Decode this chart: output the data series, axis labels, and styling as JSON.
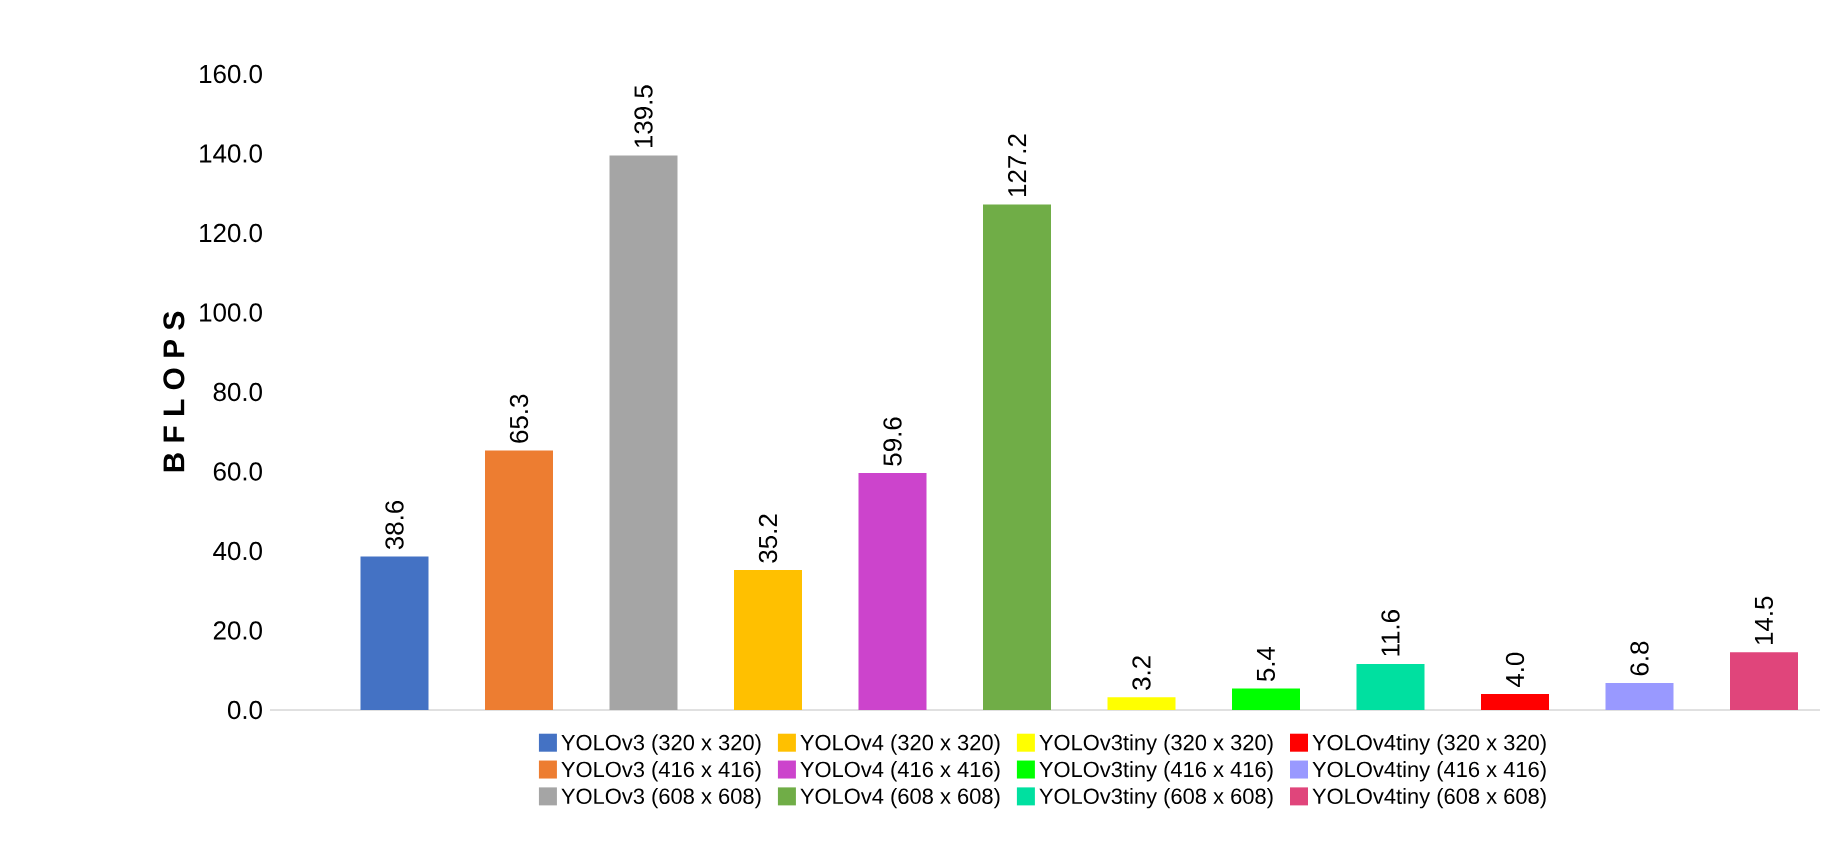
{
  "chart_data": {
    "type": "bar",
    "ylabel": "B F L O P S",
    "categories": [
      null,
      null,
      null,
      null,
      null,
      null,
      null,
      null,
      null,
      null,
      null,
      null
    ],
    "series": [
      {
        "name": "YOLOv3 (320 x 320)",
        "color": "#4472c4",
        "values": [
          38.6,
          null,
          null,
          null,
          null,
          null,
          null,
          null,
          null,
          null,
          null,
          null
        ],
        "value_labels": [
          "38.6",
          null,
          null,
          null,
          null,
          null,
          null,
          null,
          null,
          null,
          null,
          null
        ]
      },
      {
        "name": "YOLOv3 (416 x 416)",
        "color": "#ed7d31",
        "values": [
          null,
          65.3,
          null,
          null,
          null,
          null,
          null,
          null,
          null,
          null,
          null,
          null
        ],
        "value_labels": [
          null,
          "65.3",
          null,
          null,
          null,
          null,
          null,
          null,
          null,
          null,
          null,
          null
        ]
      },
      {
        "name": "YOLOv3 (608 x 608)",
        "color": "#a5a5a5",
        "values": [
          null,
          null,
          139.5,
          null,
          null,
          null,
          null,
          null,
          null,
          null,
          null,
          null
        ],
        "value_labels": [
          null,
          null,
          "139.5",
          null,
          null,
          null,
          null,
          null,
          null,
          null,
          null,
          null
        ]
      },
      {
        "name": "YOLOv4 (320 x 320)",
        "color": "#ffc000",
        "values": [
          null,
          null,
          null,
          35.2,
          null,
          null,
          null,
          null,
          null,
          null,
          null,
          null
        ],
        "value_labels": [
          null,
          null,
          null,
          "35.2",
          null,
          null,
          null,
          null,
          null,
          null,
          null,
          null
        ]
      },
      {
        "name": "YOLOv4 (416 x 416)",
        "color": "#cc44cc",
        "values": [
          null,
          null,
          null,
          null,
          59.6,
          null,
          null,
          null,
          null,
          null,
          null,
          null
        ],
        "value_labels": [
          null,
          null,
          null,
          null,
          "59.6",
          null,
          null,
          null,
          null,
          null,
          null,
          null
        ]
      },
      {
        "name": "YOLOv4 (608 x 608)",
        "color": "#70ad47",
        "values": [
          null,
          null,
          null,
          null,
          null,
          127.2,
          null,
          null,
          null,
          null,
          null,
          null
        ],
        "value_labels": [
          null,
          null,
          null,
          null,
          null,
          "127.2",
          null,
          null,
          null,
          null,
          null,
          null
        ]
      },
      {
        "name": "YOLOv3tiny (320 x 320)",
        "color": "#ffff00",
        "values": [
          null,
          null,
          null,
          null,
          null,
          null,
          3.2,
          null,
          null,
          null,
          null,
          null
        ],
        "value_labels": [
          null,
          null,
          null,
          null,
          null,
          null,
          "3.2",
          null,
          null,
          null,
          null,
          null
        ]
      },
      {
        "name": "YOLOv3tiny (416 x 416)",
        "color": "#00ff00",
        "values": [
          null,
          null,
          null,
          null,
          null,
          null,
          null,
          5.4,
          null,
          null,
          null,
          null
        ],
        "value_labels": [
          null,
          null,
          null,
          null,
          null,
          null,
          null,
          "5.4",
          null,
          null,
          null,
          null
        ]
      },
      {
        "name": "YOLOv3tiny (608 x 608)",
        "color": "#00e0a0",
        "values": [
          null,
          null,
          null,
          null,
          null,
          null,
          null,
          null,
          11.6,
          null,
          null,
          null
        ],
        "value_labels": [
          null,
          null,
          null,
          null,
          null,
          null,
          null,
          null,
          "11.6",
          null,
          null,
          null
        ]
      },
      {
        "name": "YOLOv4tiny (320 x 320)",
        "color": "#ff0000",
        "values": [
          null,
          null,
          null,
          null,
          null,
          null,
          null,
          null,
          null,
          4.0,
          null,
          null
        ],
        "value_labels": [
          null,
          null,
          null,
          null,
          null,
          null,
          null,
          null,
          null,
          "4.0",
          null,
          null
        ]
      },
      {
        "name": "YOLOv4tiny (416 x 416)",
        "color": "#9999ff",
        "values": [
          null,
          null,
          null,
          null,
          null,
          null,
          null,
          null,
          null,
          null,
          6.8,
          null
        ],
        "value_labels": [
          null,
          null,
          null,
          null,
          null,
          null,
          null,
          null,
          null,
          null,
          "6.8",
          null
        ]
      },
      {
        "name": "YOLOv4tiny (608 x 608)",
        "color": "#e0457b",
        "values": [
          null,
          null,
          null,
          null,
          null,
          null,
          null,
          null,
          null,
          null,
          null,
          14.5
        ],
        "value_labels": [
          null,
          null,
          null,
          null,
          null,
          null,
          null,
          null,
          null,
          null,
          null,
          "14.5"
        ]
      }
    ],
    "ylim": [
      0,
      160
    ],
    "yticks": [
      {
        "value": 0,
        "label": "0.0"
      },
      {
        "value": 20,
        "label": "20.0"
      },
      {
        "value": 40,
        "label": "40.0"
      },
      {
        "value": 60,
        "label": "60.0"
      },
      {
        "value": 80,
        "label": "80.0"
      },
      {
        "value": 100,
        "label": "100.0"
      },
      {
        "value": 120,
        "label": "120.0"
      },
      {
        "value": 140,
        "label": "140.0"
      },
      {
        "value": 160,
        "label": "160.0"
      }
    ],
    "legend": "bottom",
    "grid": false
  }
}
